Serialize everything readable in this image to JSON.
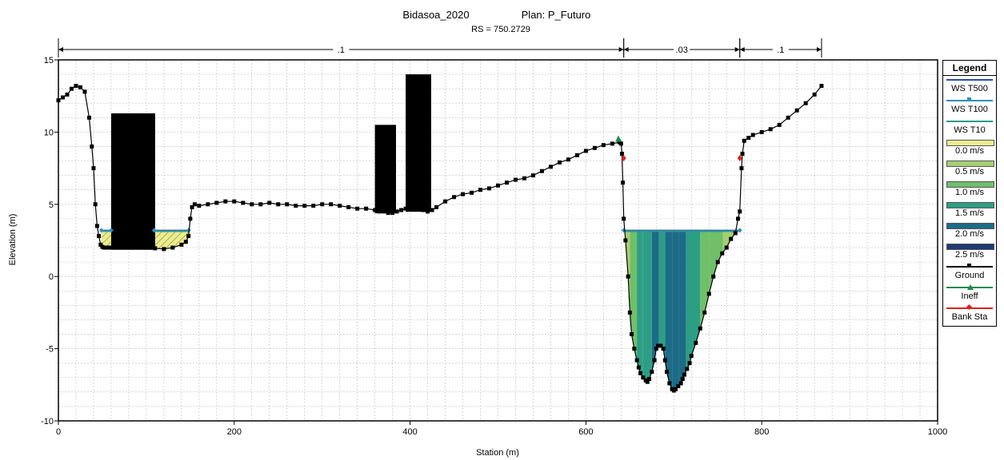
{
  "chart_data": {
    "type": "area",
    "title": "Bidasoa_2020",
    "plan": "Plan: P_Futuro",
    "subtitle": "RS = 750.2729",
    "xlabel": "Station (m)",
    "ylabel": "Elevation (m)",
    "xlim": [
      0,
      1000
    ],
    "ylim": [
      -10,
      15
    ],
    "x_ticks": [
      0,
      200,
      400,
      600,
      800,
      1000
    ],
    "y_ticks": [
      -10,
      -5,
      0,
      5,
      10,
      15
    ],
    "grid": true,
    "legend_position": "right",
    "mannings": [
      {
        "label": ".1",
        "x_start": 0,
        "x_end": 643
      },
      {
        "label": ".03",
        "x_start": 643,
        "x_end": 775
      },
      {
        "label": ".1",
        "x_start": 775,
        "x_end": 868
      }
    ],
    "water_surface": {
      "elevation": 3.2,
      "extents": [
        [
          49,
          60
        ],
        [
          109,
          148
        ],
        [
          643,
          775
        ]
      ]
    },
    "ground": {
      "x": [
        0,
        5,
        10,
        15,
        20,
        25,
        30,
        35,
        38,
        40,
        42,
        44,
        46,
        48,
        50,
        52,
        54,
        56,
        58,
        60,
        70,
        80,
        90,
        100,
        110,
        120,
        130,
        140,
        145,
        148,
        150,
        152,
        155,
        160,
        170,
        180,
        190,
        200,
        210,
        220,
        230,
        240,
        250,
        260,
        270,
        280,
        290,
        300,
        310,
        320,
        330,
        340,
        350,
        360,
        365,
        370,
        375,
        380,
        385,
        390,
        395,
        400,
        405,
        410,
        415,
        420,
        425,
        430,
        440,
        450,
        460,
        470,
        480,
        490,
        500,
        510,
        520,
        530,
        540,
        550,
        560,
        570,
        580,
        590,
        600,
        610,
        620,
        630,
        638,
        640,
        641,
        642,
        643,
        645,
        648,
        650,
        652,
        655,
        658,
        660,
        662,
        665,
        668,
        670,
        672,
        675,
        678,
        680,
        682,
        685,
        688,
        690,
        692,
        695,
        698,
        700,
        702,
        705,
        708,
        710,
        712,
        715,
        718,
        720,
        725,
        730,
        735,
        740,
        745,
        750,
        755,
        760,
        765,
        770,
        773,
        775,
        777,
        778,
        780,
        785,
        790,
        800,
        810,
        820,
        830,
        840,
        850,
        860,
        868
      ],
      "y": [
        12.2,
        12.4,
        12.6,
        13.0,
        13.2,
        13.1,
        12.8,
        11.0,
        9.0,
        7.5,
        5.0,
        3.5,
        2.8,
        2.2,
        2.05,
        2.0,
        2.0,
        2.0,
        2.0,
        2.0,
        2.0,
        2.0,
        2.0,
        2.0,
        1.95,
        1.9,
        2.0,
        2.2,
        2.4,
        2.8,
        4.0,
        4.8,
        5.0,
        4.9,
        5.0,
        5.1,
        5.2,
        5.2,
        5.1,
        5.0,
        5.0,
        5.1,
        5.0,
        5.0,
        4.9,
        4.9,
        4.9,
        5.0,
        5.0,
        4.9,
        4.8,
        4.7,
        4.7,
        4.6,
        4.5,
        4.5,
        4.4,
        4.4,
        4.5,
        4.6,
        4.7,
        4.8,
        4.8,
        4.7,
        4.6,
        4.5,
        4.6,
        4.8,
        5.2,
        5.5,
        5.7,
        5.8,
        6.0,
        6.1,
        6.3,
        6.5,
        6.7,
        6.8,
        7.0,
        7.3,
        7.6,
        7.9,
        8.1,
        8.4,
        8.7,
        8.9,
        9.1,
        9.2,
        9.3,
        9.2,
        8.5,
        6.5,
        4.0,
        2.5,
        0.0,
        -2.5,
        -4.0,
        -5.0,
        -5.8,
        -6.3,
        -6.7,
        -7.0,
        -7.2,
        -7.3,
        -7.1,
        -6.6,
        -5.8,
        -5.0,
        -4.8,
        -4.8,
        -5.0,
        -5.8,
        -6.6,
        -7.4,
        -7.8,
        -7.9,
        -7.8,
        -7.6,
        -7.4,
        -7.1,
        -6.8,
        -6.4,
        -6.0,
        -5.5,
        -4.6,
        -3.6,
        -2.5,
        -1.2,
        0.0,
        1.0,
        1.6,
        2.0,
        2.6,
        3.0,
        4.0,
        4.5,
        7.5,
        8.5,
        9.4,
        9.6,
        9.8,
        10.0,
        10.2,
        10.5,
        11.0,
        11.5,
        12.0,
        12.6,
        13.2
      ]
    },
    "blocked_obstructions": [
      {
        "x_start": 60,
        "x_end": 110,
        "elevation": 11.3
      },
      {
        "x_start": 360,
        "x_end": 384,
        "elevation": 10.5
      },
      {
        "x_start": 395,
        "x_end": 424,
        "elevation": 14.0
      }
    ],
    "ineffective_points": {
      "x": [
        637
      ],
      "y": [
        9.5
      ]
    },
    "bank_stations": {
      "x": [
        643,
        775
      ],
      "y": [
        8.2,
        8.2
      ]
    },
    "velocity_distribution": {
      "colors": [
        "#ecec90",
        "#a6ce73",
        "#70bf69",
        "#2c9e84",
        "#1c6b87",
        "#1f3a73"
      ],
      "strips": [
        {
          "x0": 643,
          "x1": 650,
          "velocity": 0.7
        },
        {
          "x0": 650,
          "x1": 658,
          "velocity": 0.9
        },
        {
          "x0": 658,
          "x1": 665,
          "velocity": 1.3
        },
        {
          "x0": 665,
          "x1": 675,
          "velocity": 1.7
        },
        {
          "x0": 675,
          "x1": 683,
          "velocity": 1.9
        },
        {
          "x0": 683,
          "x1": 690,
          "velocity": 1.6
        },
        {
          "x0": 690,
          "x1": 698,
          "velocity": 2.0
        },
        {
          "x0": 698,
          "x1": 706,
          "velocity": 2.1
        },
        {
          "x0": 706,
          "x1": 714,
          "velocity": 2.0
        },
        {
          "x0": 714,
          "x1": 722,
          "velocity": 1.7
        },
        {
          "x0": 722,
          "x1": 730,
          "velocity": 1.4
        },
        {
          "x0": 730,
          "x1": 740,
          "velocity": 1.2
        },
        {
          "x0": 740,
          "x1": 756,
          "velocity": 0.9
        },
        {
          "x0": 756,
          "x1": 775,
          "velocity": 0.7
        }
      ],
      "overbank_fill": "#ecec90"
    },
    "legend": {
      "title": "Legend",
      "items": [
        {
          "label": "WS T500",
          "kind": "line",
          "color": "#2b4fa8"
        },
        {
          "label": "WS T100",
          "kind": "line-marker",
          "color": "#2f8fbf"
        },
        {
          "label": "WS T10",
          "kind": "line",
          "color": "#2b9a8b"
        },
        {
          "label": "0.0 m/s",
          "kind": "swatch",
          "color": "#ecec90"
        },
        {
          "label": "0.5 m/s",
          "kind": "swatch",
          "color": "#a6ce73"
        },
        {
          "label": "1.0 m/s",
          "kind": "swatch",
          "color": "#70bf69"
        },
        {
          "label": "1.5 m/s",
          "kind": "swatch",
          "color": "#2c9e84"
        },
        {
          "label": "2.0 m/s",
          "kind": "swatch",
          "color": "#1c6b87"
        },
        {
          "label": "2.5 m/s",
          "kind": "swatch",
          "color": "#1f3a73"
        },
        {
          "label": "Ground",
          "kind": "ground",
          "color": "#000000"
        },
        {
          "label": "Ineff",
          "kind": "triangle",
          "color": "#1f8a4c"
        },
        {
          "label": "Bank Sta",
          "kind": "diamond",
          "color": "#e02020"
        }
      ]
    }
  }
}
